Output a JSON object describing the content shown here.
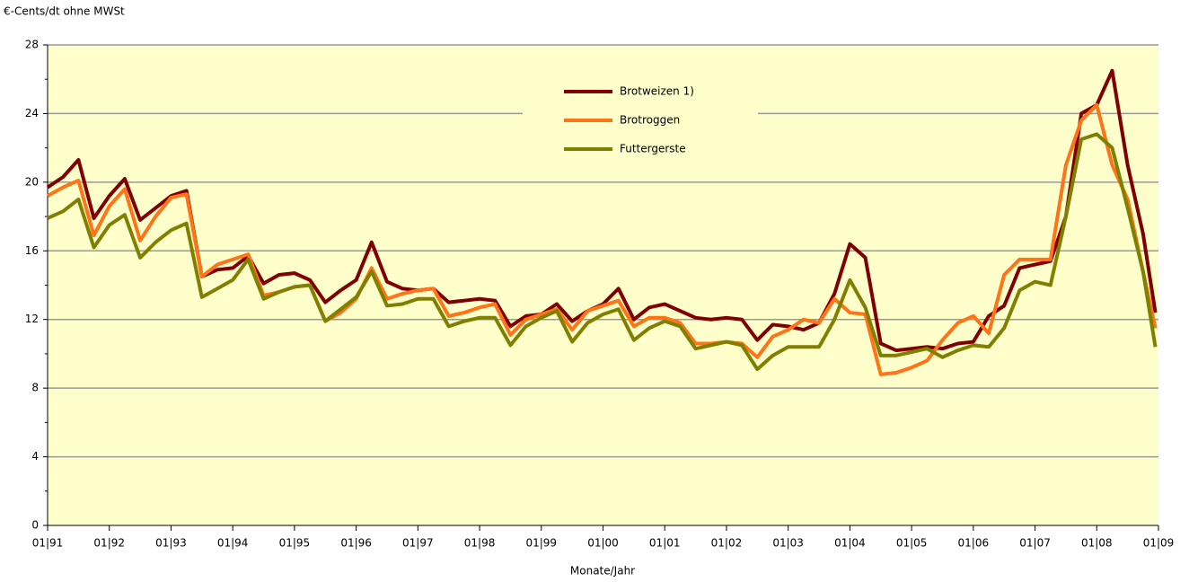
{
  "chart_data": {
    "type": "line",
    "y_label": "€-Cents/dt ohne MWSt",
    "x_label": "Monate/Jahr",
    "x": [
      1991,
      1991.25,
      1991.5,
      1991.75,
      1992,
      1992.25,
      1992.5,
      1992.75,
      1993,
      1993.25,
      1993.5,
      1993.75,
      1994,
      1994.25,
      1994.5,
      1994.75,
      1995,
      1995.25,
      1995.5,
      1995.75,
      1996,
      1996.25,
      1996.5,
      1996.75,
      1997,
      1997.25,
      1997.5,
      1997.75,
      1998,
      1998.25,
      1998.5,
      1998.75,
      1999,
      1999.25,
      1999.5,
      1999.75,
      2000,
      2000.25,
      2000.5,
      2000.75,
      2001,
      2001.25,
      2001.5,
      2001.75,
      2002,
      2002.25,
      2002.5,
      2002.75,
      2003,
      2003.25,
      2003.5,
      2003.75,
      2004,
      2004.25,
      2004.5,
      2004.75,
      2005,
      2005.25,
      2005.5,
      2005.75,
      2006,
      2006.25,
      2006.5,
      2006.75,
      2007,
      2007.25,
      2007.5,
      2007.75,
      2008,
      2008.25,
      2008.5,
      2008.75,
      2008.95
    ],
    "series": [
      {
        "name": "Brotweizen 1)",
        "color": "#800000",
        "values": [
          19.7,
          20.3,
          21.3,
          17.9,
          19.2,
          20.2,
          17.8,
          18.5,
          19.2,
          19.5,
          14.5,
          14.9,
          15.0,
          15.7,
          14.1,
          14.6,
          14.7,
          14.3,
          13.0,
          13.7,
          14.3,
          16.5,
          14.2,
          13.8,
          13.7,
          13.8,
          13.0,
          13.1,
          13.2,
          13.1,
          11.6,
          12.2,
          12.3,
          12.9,
          11.9,
          12.5,
          12.9,
          13.8,
          12.0,
          12.7,
          12.9,
          12.5,
          12.1,
          12.0,
          12.1,
          12.0,
          10.8,
          11.7,
          11.6,
          11.4,
          11.8,
          13.5,
          16.4,
          15.6,
          10.6,
          10.2,
          10.3,
          10.4,
          10.3,
          10.6,
          10.7,
          12.2,
          12.8,
          15.0,
          15.2,
          15.4,
          18.0,
          24.0,
          24.5,
          26.5,
          21.0,
          17.0,
          12.4
        ]
      },
      {
        "name": "Brotroggen",
        "color": "#ff7417",
        "values": [
          19.2,
          19.7,
          20.1,
          16.9,
          18.6,
          19.6,
          16.6,
          18.0,
          19.1,
          19.3,
          14.5,
          15.2,
          15.5,
          15.8,
          13.4,
          13.6,
          13.9,
          14.0,
          11.9,
          12.4,
          13.2,
          15.0,
          13.2,
          13.5,
          13.7,
          13.8,
          12.2,
          12.4,
          12.7,
          12.9,
          11.1,
          12.0,
          12.3,
          12.6,
          11.4,
          12.5,
          12.8,
          13.1,
          11.6,
          12.1,
          12.1,
          11.8,
          10.6,
          10.6,
          10.7,
          10.6,
          9.8,
          11.0,
          11.4,
          12.0,
          11.8,
          13.2,
          12.4,
          12.3,
          8.8,
          8.9,
          9.2,
          9.6,
          10.8,
          11.8,
          12.2,
          11.2,
          14.6,
          15.5,
          15.5,
          15.5,
          21.0,
          23.6,
          24.5,
          21.0,
          19.0,
          14.8,
          11.5
        ]
      },
      {
        "name": "Futtergerste",
        "color": "#808000",
        "values": [
          17.9,
          18.3,
          19.0,
          16.2,
          17.5,
          18.1,
          15.6,
          16.5,
          17.2,
          17.6,
          13.3,
          13.8,
          14.3,
          15.5,
          13.2,
          13.6,
          13.9,
          14.0,
          11.9,
          12.6,
          13.3,
          14.8,
          12.8,
          12.9,
          13.2,
          13.2,
          11.6,
          11.9,
          12.1,
          12.1,
          10.5,
          11.6,
          12.1,
          12.5,
          10.7,
          11.8,
          12.3,
          12.6,
          10.8,
          11.5,
          11.9,
          11.6,
          10.3,
          10.5,
          10.7,
          10.5,
          9.1,
          9.9,
          10.4,
          10.4,
          10.4,
          12.0,
          14.3,
          12.7,
          9.9,
          9.9,
          10.1,
          10.3,
          9.8,
          10.2,
          10.5,
          10.4,
          11.5,
          13.7,
          14.2,
          14.0,
          18.0,
          22.5,
          22.8,
          22.0,
          18.5,
          14.8,
          10.4
        ]
      }
    ],
    "xlim": [
      1991,
      2009
    ],
    "xticks": [
      {
        "value": 1991,
        "label": "01|91"
      },
      {
        "value": 1992,
        "label": "01|92"
      },
      {
        "value": 1993,
        "label": "01|93"
      },
      {
        "value": 1994,
        "label": "01|94"
      },
      {
        "value": 1995,
        "label": "01|95"
      },
      {
        "value": 1996,
        "label": "01|96"
      },
      {
        "value": 1997,
        "label": "01|97"
      },
      {
        "value": 1998,
        "label": "01|98"
      },
      {
        "value": 1999,
        "label": "01|99"
      },
      {
        "value": 2000,
        "label": "01|00"
      },
      {
        "value": 2001,
        "label": "01|01"
      },
      {
        "value": 2002,
        "label": "01|02"
      },
      {
        "value": 2003,
        "label": "01|03"
      },
      {
        "value": 2004,
        "label": "01|04"
      },
      {
        "value": 2005,
        "label": "01|05"
      },
      {
        "value": 2006,
        "label": "01|06"
      },
      {
        "value": 2007,
        "label": "01|07"
      },
      {
        "value": 2008,
        "label": "01|08"
      },
      {
        "value": 2009,
        "label": "01|09"
      }
    ],
    "ylim": [
      0,
      28
    ],
    "yticks": [
      0,
      4,
      8,
      12,
      16,
      20,
      24,
      28
    ],
    "grid": true,
    "legend": "top"
  }
}
